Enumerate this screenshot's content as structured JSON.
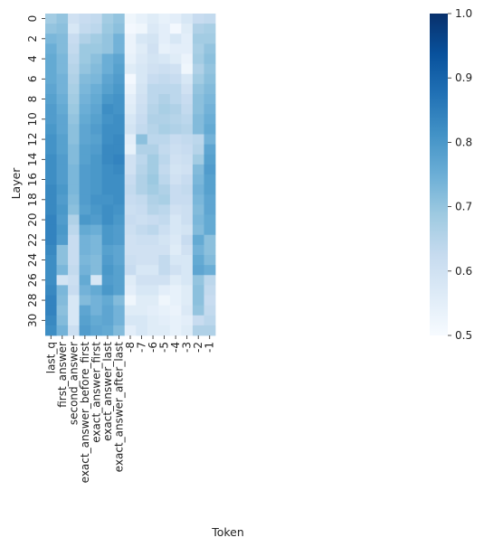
{
  "chart_data": {
    "type": "heatmap",
    "title": "",
    "xlabel": "Token",
    "ylabel": "Layer",
    "x_categories": [
      "last_q",
      "first_answer",
      "second_answer",
      "exact_answer_before_first",
      "exact_answer_first",
      "exact_answer_last",
      "exact_answer_after_last",
      "-8",
      "-7",
      "-6",
      "-5",
      "-4",
      "-3",
      "-2",
      "-1"
    ],
    "y_categories": [
      "0",
      "1",
      "2",
      "3",
      "4",
      "5",
      "6",
      "7",
      "8",
      "9",
      "10",
      "11",
      "12",
      "13",
      "14",
      "15",
      "16",
      "17",
      "18",
      "19",
      "20",
      "21",
      "22",
      "23",
      "24",
      "25",
      "26",
      "27",
      "28",
      "29",
      "30",
      "31"
    ],
    "y_tick_labels": [
      "0",
      "2",
      "4",
      "6",
      "8",
      "10",
      "12",
      "14",
      "16",
      "18",
      "20",
      "22",
      "24",
      "26",
      "28",
      "30"
    ],
    "colorbar": {
      "min": 0.5,
      "max": 1.0,
      "ticks": [
        "0.5",
        "0.6",
        "0.7",
        "0.8",
        "0.9",
        "1.0"
      ],
      "colormap": "Blues"
    },
    "values": [
      [
        0.68,
        0.7,
        0.6,
        0.62,
        0.63,
        0.68,
        0.7,
        0.52,
        0.54,
        0.56,
        0.54,
        0.55,
        0.58,
        0.62,
        0.63
      ],
      [
        0.7,
        0.71,
        0.58,
        0.63,
        0.64,
        0.69,
        0.71,
        0.51,
        0.52,
        0.57,
        0.55,
        0.51,
        0.56,
        0.66,
        0.67
      ],
      [
        0.73,
        0.72,
        0.62,
        0.66,
        0.68,
        0.7,
        0.74,
        0.53,
        0.58,
        0.59,
        0.55,
        0.58,
        0.55,
        0.68,
        0.68
      ],
      [
        0.75,
        0.72,
        0.63,
        0.69,
        0.69,
        0.7,
        0.74,
        0.53,
        0.56,
        0.6,
        0.54,
        0.55,
        0.55,
        0.67,
        0.7
      ],
      [
        0.76,
        0.73,
        0.64,
        0.69,
        0.71,
        0.75,
        0.77,
        0.54,
        0.57,
        0.59,
        0.58,
        0.56,
        0.53,
        0.68,
        0.71
      ],
      [
        0.76,
        0.73,
        0.65,
        0.7,
        0.72,
        0.75,
        0.78,
        0.56,
        0.58,
        0.6,
        0.61,
        0.6,
        0.52,
        0.66,
        0.7
      ],
      [
        0.76,
        0.74,
        0.66,
        0.72,
        0.73,
        0.77,
        0.79,
        0.51,
        0.58,
        0.62,
        0.63,
        0.62,
        0.58,
        0.68,
        0.71
      ],
      [
        0.77,
        0.74,
        0.67,
        0.73,
        0.75,
        0.78,
        0.8,
        0.53,
        0.59,
        0.64,
        0.64,
        0.64,
        0.6,
        0.7,
        0.72
      ],
      [
        0.78,
        0.75,
        0.68,
        0.74,
        0.76,
        0.8,
        0.81,
        0.55,
        0.6,
        0.64,
        0.66,
        0.64,
        0.62,
        0.71,
        0.73
      ],
      [
        0.79,
        0.76,
        0.69,
        0.75,
        0.77,
        0.82,
        0.81,
        0.56,
        0.61,
        0.65,
        0.67,
        0.66,
        0.63,
        0.71,
        0.74
      ],
      [
        0.79,
        0.77,
        0.7,
        0.76,
        0.78,
        0.81,
        0.82,
        0.58,
        0.62,
        0.66,
        0.66,
        0.65,
        0.64,
        0.72,
        0.75
      ],
      [
        0.8,
        0.77,
        0.71,
        0.77,
        0.79,
        0.82,
        0.82,
        0.59,
        0.63,
        0.65,
        0.67,
        0.66,
        0.65,
        0.72,
        0.76
      ],
      [
        0.81,
        0.78,
        0.71,
        0.77,
        0.78,
        0.82,
        0.83,
        0.55,
        0.71,
        0.64,
        0.64,
        0.62,
        0.63,
        0.64,
        0.74
      ],
      [
        0.81,
        0.78,
        0.72,
        0.78,
        0.79,
        0.83,
        0.83,
        0.54,
        0.66,
        0.66,
        0.63,
        0.61,
        0.62,
        0.65,
        0.77
      ],
      [
        0.82,
        0.79,
        0.72,
        0.78,
        0.8,
        0.83,
        0.84,
        0.6,
        0.64,
        0.68,
        0.64,
        0.6,
        0.61,
        0.68,
        0.78
      ],
      [
        0.82,
        0.79,
        0.73,
        0.79,
        0.8,
        0.82,
        0.83,
        0.6,
        0.65,
        0.68,
        0.63,
        0.59,
        0.6,
        0.72,
        0.79
      ],
      [
        0.82,
        0.79,
        0.73,
        0.79,
        0.8,
        0.82,
        0.82,
        0.62,
        0.66,
        0.69,
        0.64,
        0.6,
        0.62,
        0.73,
        0.78
      ],
      [
        0.83,
        0.8,
        0.73,
        0.79,
        0.8,
        0.82,
        0.82,
        0.63,
        0.66,
        0.68,
        0.66,
        0.62,
        0.63,
        0.74,
        0.78
      ],
      [
        0.83,
        0.79,
        0.72,
        0.79,
        0.81,
        0.81,
        0.82,
        0.62,
        0.63,
        0.66,
        0.67,
        0.62,
        0.62,
        0.73,
        0.77
      ],
      [
        0.83,
        0.8,
        0.71,
        0.78,
        0.8,
        0.82,
        0.81,
        0.61,
        0.62,
        0.65,
        0.64,
        0.6,
        0.61,
        0.72,
        0.77
      ],
      [
        0.84,
        0.79,
        0.66,
        0.8,
        0.79,
        0.82,
        0.8,
        0.62,
        0.61,
        0.62,
        0.63,
        0.58,
        0.61,
        0.73,
        0.76
      ],
      [
        0.84,
        0.8,
        0.64,
        0.76,
        0.75,
        0.8,
        0.79,
        0.61,
        0.63,
        0.64,
        0.61,
        0.58,
        0.59,
        0.72,
        0.76
      ],
      [
        0.84,
        0.79,
        0.62,
        0.74,
        0.73,
        0.8,
        0.79,
        0.6,
        0.61,
        0.61,
        0.59,
        0.57,
        0.62,
        0.76,
        0.71
      ],
      [
        0.83,
        0.71,
        0.62,
        0.74,
        0.73,
        0.78,
        0.77,
        0.6,
        0.6,
        0.6,
        0.6,
        0.56,
        0.6,
        0.74,
        0.71
      ],
      [
        0.82,
        0.71,
        0.62,
        0.73,
        0.72,
        0.79,
        0.77,
        0.61,
        0.6,
        0.6,
        0.63,
        0.58,
        0.58,
        0.76,
        0.72
      ],
      [
        0.82,
        0.73,
        0.63,
        0.74,
        0.72,
        0.8,
        0.78,
        0.62,
        0.58,
        0.58,
        0.63,
        0.6,
        0.58,
        0.77,
        0.75
      ],
      [
        0.82,
        0.59,
        0.61,
        0.76,
        0.58,
        0.79,
        0.78,
        0.56,
        0.6,
        0.6,
        0.6,
        0.56,
        0.58,
        0.7,
        0.64
      ],
      [
        0.83,
        0.73,
        0.62,
        0.74,
        0.76,
        0.8,
        0.78,
        0.55,
        0.58,
        0.58,
        0.55,
        0.54,
        0.56,
        0.71,
        0.63
      ],
      [
        0.84,
        0.72,
        0.58,
        0.72,
        0.74,
        0.76,
        0.72,
        0.52,
        0.56,
        0.56,
        0.52,
        0.54,
        0.56,
        0.71,
        0.62
      ],
      [
        0.84,
        0.71,
        0.58,
        0.77,
        0.74,
        0.77,
        0.74,
        0.56,
        0.56,
        0.55,
        0.54,
        0.53,
        0.57,
        0.7,
        0.63
      ],
      [
        0.83,
        0.72,
        0.58,
        0.78,
        0.76,
        0.77,
        0.74,
        0.58,
        0.58,
        0.56,
        0.55,
        0.54,
        0.55,
        0.62,
        0.64
      ],
      [
        0.82,
        0.74,
        0.61,
        0.79,
        0.77,
        0.76,
        0.72,
        0.55,
        0.58,
        0.56,
        0.56,
        0.54,
        0.56,
        0.66,
        0.66
      ]
    ]
  }
}
